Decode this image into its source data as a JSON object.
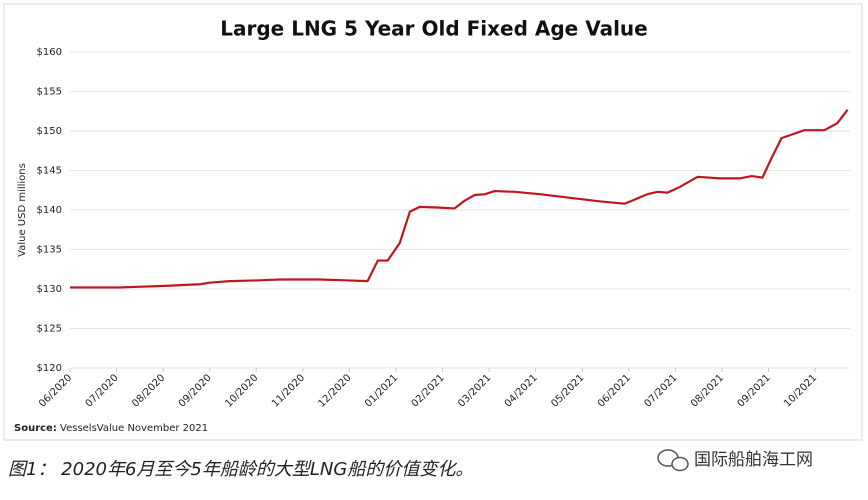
{
  "chart_data": {
    "type": "line",
    "title": "Large LNG 5 Year Old Fixed Age Value",
    "y_label": "Value USD millions",
    "source_label": "Source:",
    "source": " VesselsValue November 2021",
    "xlim": [
      0,
      16.75
    ],
    "xticks": [
      {
        "value": 0,
        "label": "06/2020"
      },
      {
        "value": 1,
        "label": "07/2020"
      },
      {
        "value": 2,
        "label": "08/2020"
      },
      {
        "value": 3,
        "label": "09/2020"
      },
      {
        "value": 4,
        "label": "10/2020"
      },
      {
        "value": 5,
        "label": "11/2020"
      },
      {
        "value": 6,
        "label": "12/2020"
      },
      {
        "value": 7,
        "label": "01/2021"
      },
      {
        "value": 8,
        "label": "02/2021"
      },
      {
        "value": 9,
        "label": "03/2021"
      },
      {
        "value": 10,
        "label": "04/2021"
      },
      {
        "value": 11,
        "label": "05/2021"
      },
      {
        "value": 12,
        "label": "06/2021"
      },
      {
        "value": 13,
        "label": "07/2021"
      },
      {
        "value": 14,
        "label": "08/2021"
      },
      {
        "value": 15,
        "label": "09/2021"
      },
      {
        "value": 16,
        "label": "10/2021"
      }
    ],
    "ylim": [
      120,
      160
    ],
    "yticks": [
      {
        "value": 120,
        "label": "$120"
      },
      {
        "value": 125,
        "label": "$125"
      },
      {
        "value": 130,
        "label": "$130"
      },
      {
        "value": 135,
        "label": "$135"
      },
      {
        "value": 140,
        "label": "$140"
      },
      {
        "value": 145,
        "label": "$145"
      },
      {
        "value": 150,
        "label": "$150"
      },
      {
        "value": 155,
        "label": "$155"
      },
      {
        "value": 160,
        "label": "$160"
      }
    ],
    "grid": true,
    "series": [
      {
        "color": "#c0161f",
        "x": [
          0,
          1.07,
          2.04,
          2.79,
          3.0,
          3.43,
          4.08,
          4.51,
          5.36,
          5.9,
          6.39,
          6.61,
          6.82,
          7.08,
          7.3,
          7.51,
          7.94,
          8.26,
          8.48,
          8.69,
          8.91,
          9.12,
          9.55,
          10.09,
          10.94,
          11.37,
          11.91,
          12.12,
          12.4,
          12.62,
          12.83,
          13.09,
          13.48,
          13.95,
          14.38,
          14.64,
          14.87,
          15.06,
          15.28,
          15.77,
          16.2,
          16.48,
          16.7
        ],
        "values": [
          130.2,
          130.2,
          130.4,
          130.6,
          130.8,
          131.0,
          131.1,
          131.2,
          131.2,
          131.1,
          131.0,
          133.6,
          133.6,
          135.8,
          139.8,
          140.4,
          140.3,
          140.2,
          141.2,
          141.9,
          142.0,
          142.4,
          142.3,
          142.0,
          141.4,
          141.1,
          140.8,
          141.3,
          142.0,
          142.3,
          142.2,
          142.9,
          144.2,
          144.0,
          144.0,
          144.3,
          144.1,
          146.5,
          149.1,
          150.1,
          150.1,
          151.0,
          152.7
        ]
      }
    ]
  },
  "caption": "图1： 2020年6月至今5年船龄的大型LNG船的价值变化。",
  "watermark": "国际船舶海工网"
}
